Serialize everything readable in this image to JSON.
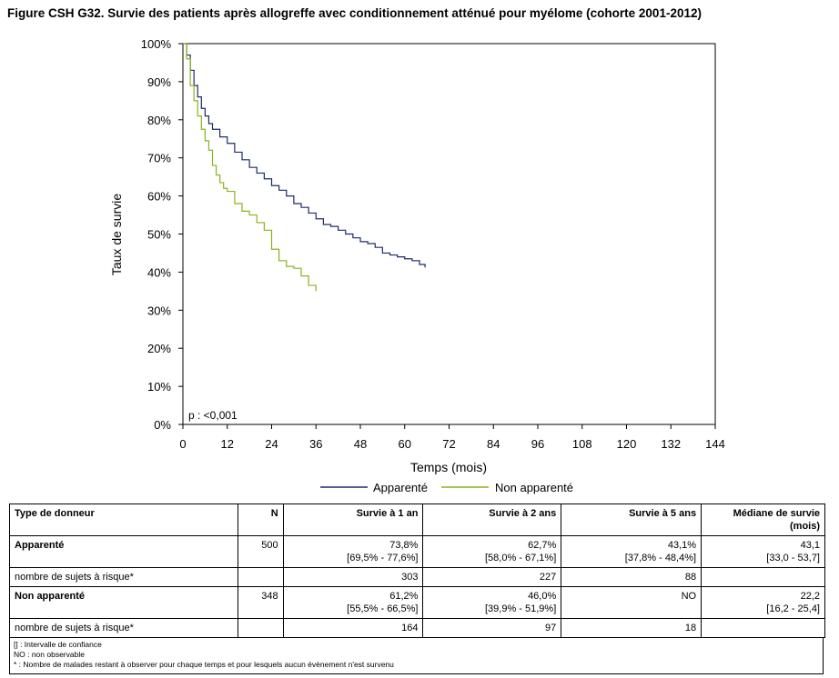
{
  "figure": {
    "title": "Figure CSH G32. Survie des patients après allogreffe avec conditionnement atténué pour myélome (cohorte 2001-2012)"
  },
  "chart_data": {
    "type": "line",
    "title": "Figure CSH G32. Survie des patients après allogreffe avec conditionnement atténué pour myélome (cohorte 2001-2012)",
    "xlabel": "Temps (mois)",
    "ylabel": "Taux de survie",
    "xlim": [
      0,
      144
    ],
    "ylim": [
      0,
      100
    ],
    "x_ticks": [
      "0",
      "12",
      "24",
      "36",
      "48",
      "60",
      "72",
      "84",
      "96",
      "108",
      "120",
      "132",
      "144"
    ],
    "y_ticks": [
      "0%",
      "10%",
      "20%",
      "30%",
      "40%",
      "50%",
      "60%",
      "70%",
      "80%",
      "90%",
      "100%"
    ],
    "annotation": "p : <0,001",
    "legend_position": "bottom",
    "grid": false,
    "series": [
      {
        "name": "Apparenté",
        "color": "#1f2a6b",
        "x": [
          0,
          1,
          2,
          3,
          4,
          5,
          6,
          7,
          8,
          10,
          12,
          14,
          16,
          18,
          20,
          22,
          24,
          26,
          28,
          30,
          32,
          34,
          36,
          38,
          40,
          42,
          44,
          46,
          48,
          50,
          52,
          54,
          56,
          58,
          60,
          62,
          64,
          65.5
        ],
        "y": [
          100,
          97,
          93,
          89,
          86,
          83,
          81,
          79,
          77.5,
          75.5,
          73.8,
          71.5,
          69.5,
          67.5,
          66,
          64.5,
          62.7,
          61.5,
          60,
          58,
          57,
          55.5,
          54,
          52.5,
          52,
          51,
          50,
          49,
          48,
          47.5,
          46.5,
          45,
          44.5,
          44,
          43.5,
          43,
          42,
          41.2
        ]
      },
      {
        "name": "Non apparenté",
        "color": "#8ab31e",
        "x": [
          0,
          1,
          2,
          3,
          4,
          5,
          6,
          7,
          8,
          9,
          10,
          11,
          12,
          14,
          16,
          18,
          20,
          22,
          24,
          26,
          28,
          30,
          32,
          34,
          36
        ],
        "y": [
          100,
          96,
          89,
          85,
          81,
          77.5,
          74.5,
          72,
          68,
          65.5,
          63.5,
          62,
          61.2,
          58,
          56,
          55,
          53,
          51,
          46,
          43,
          41.5,
          41,
          39,
          36.5,
          35
        ]
      }
    ]
  },
  "table": {
    "headers": [
      "Type de donneur",
      "N",
      "Survie à 1 an",
      "Survie à 2 ans",
      "Survie à 5 ans",
      "Médiane de survie (mois)"
    ],
    "rows": [
      {
        "label": "Apparenté",
        "n": "500",
        "s1": "73,8%",
        "s1_ci": "[69,5% - 77,6%]",
        "s2": "62,7%",
        "s2_ci": "[58,0% - 67,1%]",
        "s5": "43,1%",
        "s5_ci": "[37,8% - 48,4%]",
        "med": "43,1",
        "med_ci": "[33,0 - 53,7]"
      },
      {
        "label": "nombre de sujets à risque*",
        "r1": "303",
        "r2": "227",
        "r5": "88"
      },
      {
        "label": "Non apparenté",
        "n": "348",
        "s1": "61,2%",
        "s1_ci": "[55,5% - 66,5%]",
        "s2": "46,0%",
        "s2_ci": "[39,9% - 51,9%]",
        "s5": "NO",
        "med": "22,2",
        "med_ci": "[16,2 - 25,4]"
      },
      {
        "label": "nombre de sujets à risque*",
        "r1": "164",
        "r2": "97",
        "r5": "18"
      }
    ]
  },
  "footnotes": [
    "[] : Intervalle de confiance",
    "NO : non observable",
    "* : Nombre de malades restant à observer pour chaque temps et pour lesquels aucun évènement n'est survenu"
  ]
}
